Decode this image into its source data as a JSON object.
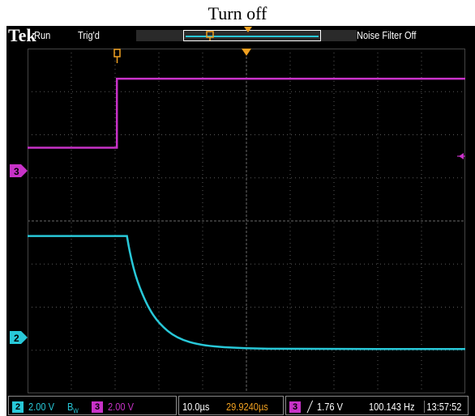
{
  "caption": "Turn off",
  "header": {
    "brand": "Tek",
    "run_state": "Run",
    "trigger_status": "Trig'd",
    "noise_filter": "Noise Filter Off"
  },
  "footer": {
    "ch2": {
      "number": "2",
      "scale": "2.00 V",
      "bw": "B",
      "bw_sub": "W"
    },
    "ch3": {
      "number": "3",
      "scale": "2.00 V"
    },
    "timebase": "10.0µs",
    "position": "29.9240µs",
    "trigger": {
      "source": "3",
      "slope": "╱",
      "level": "1.76 V"
    },
    "frequency": "100.143 Hz",
    "time": "13:57:52"
  },
  "channels": {
    "ch3": {
      "label": "3",
      "color": "#c832c8"
    },
    "ch2": {
      "label": "2",
      "color": "#28c8d8"
    }
  },
  "markers": {
    "trigger_point_color": "#f0a020",
    "position_marker": "T"
  },
  "chart_data": {
    "type": "line",
    "title": "Turn off",
    "x_unit": "µs",
    "x_div": 10.0,
    "y_div_volts": 2.0,
    "x_range_div": [
      0,
      10
    ],
    "y_range_div": [
      0,
      8
    ],
    "grid": true,
    "series": [
      {
        "name": "3",
        "color": "#c832c8",
        "points_div": [
          [
            0,
            5.7
          ],
          [
            2.04,
            5.7
          ],
          [
            2.04,
            7.3
          ],
          [
            10,
            7.3
          ]
        ]
      },
      {
        "name": "2",
        "color": "#28c8d8",
        "points_div": [
          [
            0,
            3.65
          ],
          [
            2.27,
            3.65
          ],
          [
            2.35,
            3.2
          ],
          [
            2.5,
            2.6
          ],
          [
            2.75,
            2.0
          ],
          [
            3.0,
            1.62
          ],
          [
            3.4,
            1.28
          ],
          [
            4.0,
            1.1
          ],
          [
            5.0,
            1.04
          ],
          [
            6.0,
            1.03
          ],
          [
            10,
            1.03
          ]
        ]
      }
    ]
  }
}
